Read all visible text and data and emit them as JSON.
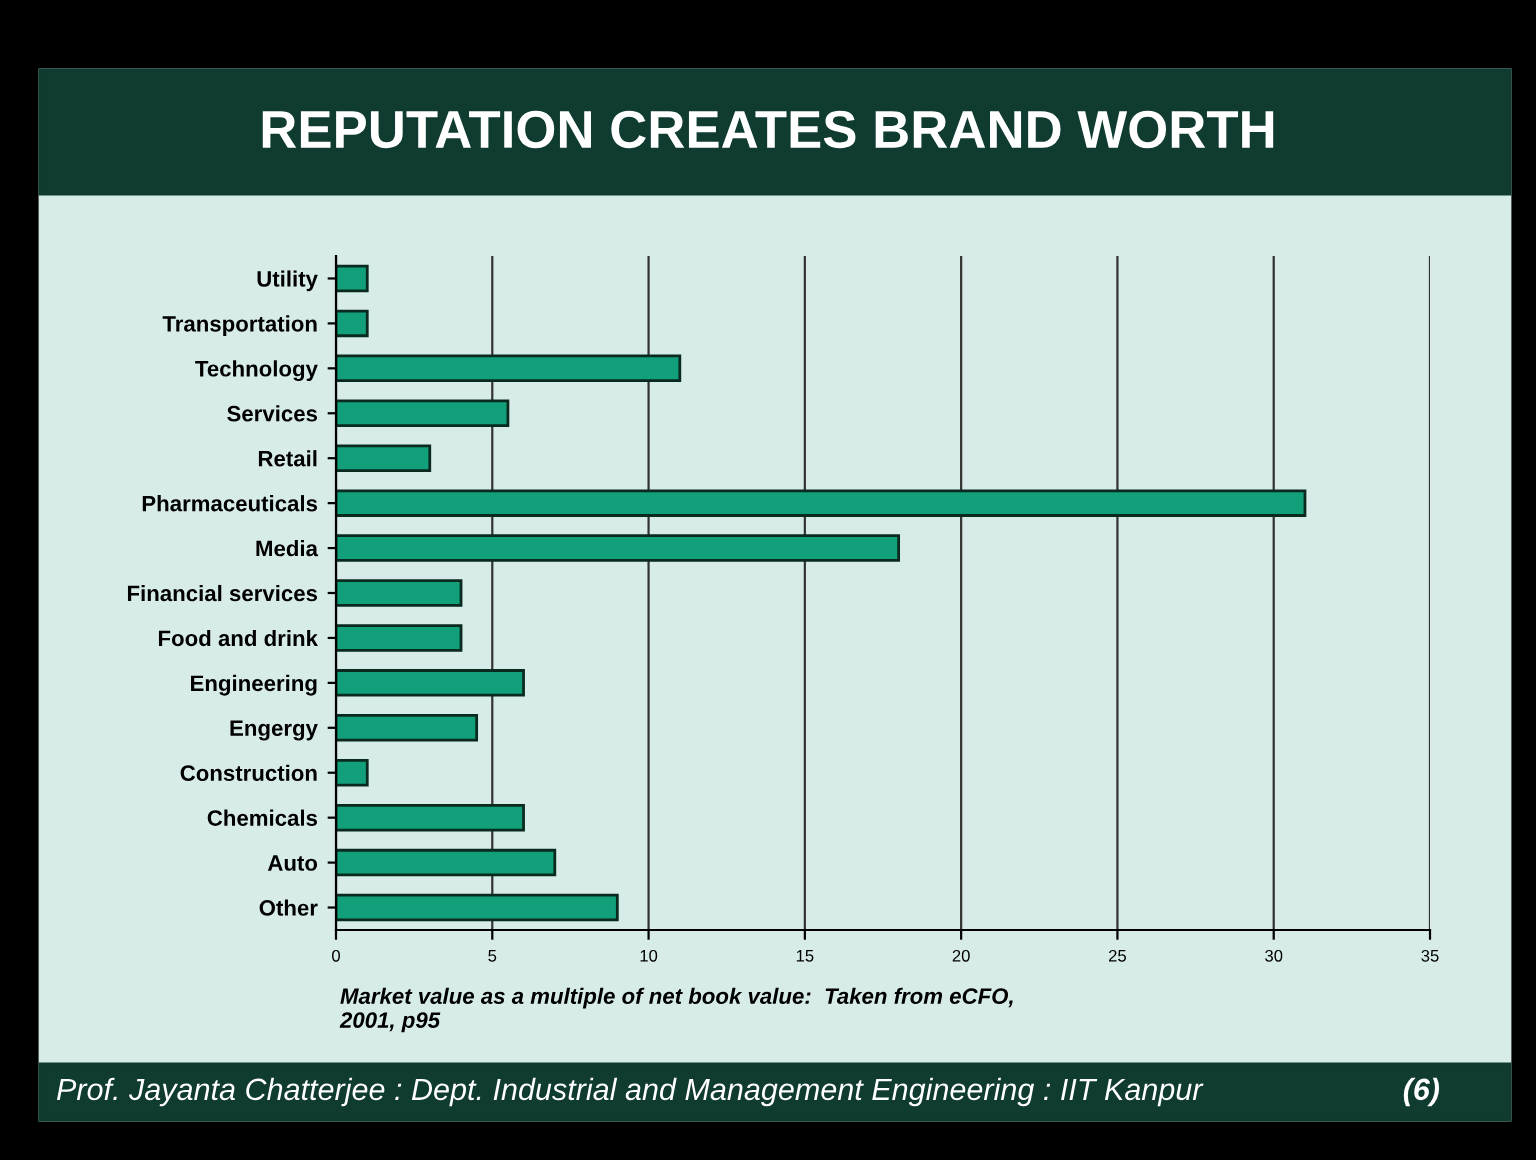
{
  "chart_data": {
    "type": "bar",
    "orientation": "horizontal",
    "title": "REPUTATION CREATES BRAND WORTH",
    "categories": [
      "Utility",
      "Transportation",
      "Technology",
      "Services",
      "Retail",
      "Pharmaceuticals",
      "Media",
      "Financial services",
      "Food and drink",
      "Engineering",
      "Engergy",
      "Construction",
      "Chemicals",
      "Auto",
      "Other"
    ],
    "values": [
      1,
      1,
      11,
      5.5,
      3,
      31,
      18,
      4,
      4,
      6,
      4.5,
      1,
      6,
      7,
      9
    ],
    "color": "#11a07a",
    "xlim": [
      0,
      35
    ],
    "xticks": [
      0,
      5,
      10,
      15,
      20,
      25,
      30,
      35
    ],
    "grid": "x",
    "annotations": [
      "Market value as a multiple of net book value:  Taken from eCFO, 2001, p95",
      "Prof. Jayanta Chatterjee : Dept. Industrial and Management Engineering : IIT Kanpur",
      "(6)"
    ]
  }
}
